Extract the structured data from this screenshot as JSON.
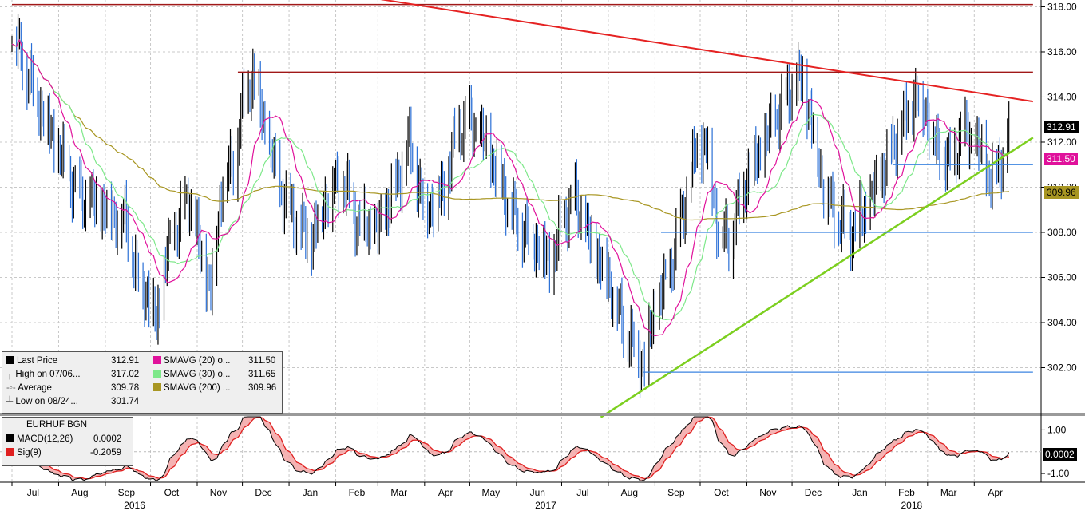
{
  "colors": {
    "price_up": "#000000",
    "price_down": "#2a6fd6",
    "sma20": "#e0119b",
    "sma30": "#7ee88a",
    "sma200": "#a89622",
    "trend_red": "#e52222",
    "hline_dark_red": "#a01818",
    "trend_green": "#7ccf1f",
    "support_blue": "#3b84e0",
    "macd_line": "#000000",
    "signal_line": "#e02020"
  },
  "main_panel": {
    "legend": {
      "last_price": {
        "label": "Last Price",
        "value": "312.91"
      },
      "high": {
        "label": "High on 07/06...",
        "value": "317.02"
      },
      "average": {
        "label": "Average",
        "value": "309.78"
      },
      "low": {
        "label": "Low on 08/24...",
        "value": "301.74"
      },
      "sma20": {
        "label": "SMAVG (20) o...",
        "value": "311.50"
      },
      "sma30": {
        "label": "SMAVG (30) o...",
        "value": "311.65"
      },
      "sma200": {
        "label": "SMAVG (200) ...",
        "value": "309.96"
      }
    },
    "badges": {
      "last": "312.91",
      "sma20": "311.50",
      "sma200": "309.96"
    }
  },
  "macd_panel": {
    "title": "EURHUF BGN",
    "macd": {
      "label": "MACD(12,26)",
      "value": "0.0002"
    },
    "sig": {
      "label": "Sig(9)",
      "value": "-0.2059"
    },
    "badge": "0.0002",
    "y_ticks": [
      "1.00",
      "-1.00"
    ]
  },
  "x_axis": {
    "months": [
      "Jul",
      "Aug",
      "Sep",
      "Oct",
      "Nov",
      "Dec",
      "Jan",
      "Feb",
      "Mar",
      "Apr",
      "May",
      "Jun",
      "Jul",
      "Aug",
      "Sep",
      "Oct",
      "Nov",
      "Dec",
      "Jan",
      "Feb",
      "Mar",
      "Apr"
    ],
    "years": [
      "2016",
      "2017",
      "2018"
    ]
  },
  "chart_data": {
    "type": "line",
    "title": "EURHUF BGN",
    "x_range": [
      "2016-07-01",
      "2018-04-30"
    ],
    "ylim": [
      300.0,
      318.3
    ],
    "y_ticks": [
      302,
      304,
      306,
      308,
      310,
      312,
      314,
      316,
      318
    ],
    "y_tick_labels": [
      "302.00",
      "304.00",
      "306.00",
      "308.00",
      "310.00",
      "312.00",
      "314.00",
      "316.00",
      "318.00"
    ],
    "price_keypoints": [
      {
        "date": "2016-07-01",
        "value": 316.8
      },
      {
        "date": "2016-07-15",
        "value": 314.5
      },
      {
        "date": "2016-08-01",
        "value": 311.5
      },
      {
        "date": "2016-08-15",
        "value": 309.5
      },
      {
        "date": "2016-09-01",
        "value": 309.0
      },
      {
        "date": "2016-09-15",
        "value": 308.5
      },
      {
        "date": "2016-09-22",
        "value": 306.0
      },
      {
        "date": "2016-09-28",
        "value": 305.5
      },
      {
        "date": "2016-10-05",
        "value": 304.0
      },
      {
        "date": "2016-10-12",
        "value": 307.0
      },
      {
        "date": "2016-10-20",
        "value": 308.5
      },
      {
        "date": "2016-10-27",
        "value": 309.5
      },
      {
        "date": "2016-11-03",
        "value": 307.0
      },
      {
        "date": "2016-11-10",
        "value": 305.5
      },
      {
        "date": "2016-11-18",
        "value": 310.5
      },
      {
        "date": "2016-11-25",
        "value": 311.0
      },
      {
        "date": "2016-12-02",
        "value": 314.0
      },
      {
        "date": "2016-12-08",
        "value": 315.0
      },
      {
        "date": "2016-12-15",
        "value": 313.0
      },
      {
        "date": "2016-12-25",
        "value": 310.0
      },
      {
        "date": "2017-01-05",
        "value": 308.5
      },
      {
        "date": "2017-01-15",
        "value": 307.5
      },
      {
        "date": "2017-01-25",
        "value": 309.5
      },
      {
        "date": "2017-02-05",
        "value": 310.5
      },
      {
        "date": "2017-02-15",
        "value": 308.5
      },
      {
        "date": "2017-03-01",
        "value": 308.0
      },
      {
        "date": "2017-03-15",
        "value": 310.5
      },
      {
        "date": "2017-03-22",
        "value": 312.0
      },
      {
        "date": "2017-04-01",
        "value": 309.0
      },
      {
        "date": "2017-04-15",
        "value": 310.0
      },
      {
        "date": "2017-04-22",
        "value": 312.5
      },
      {
        "date": "2017-05-01",
        "value": 313.0
      },
      {
        "date": "2017-05-10",
        "value": 312.0
      },
      {
        "date": "2017-05-20",
        "value": 310.5
      },
      {
        "date": "2017-06-01",
        "value": 308.5
      },
      {
        "date": "2017-06-15",
        "value": 307.5
      },
      {
        "date": "2017-06-25",
        "value": 306.5
      },
      {
        "date": "2017-07-01",
        "value": 308.5
      },
      {
        "date": "2017-07-10",
        "value": 309.5
      },
      {
        "date": "2017-07-20",
        "value": 307.5
      },
      {
        "date": "2017-08-01",
        "value": 306.0
      },
      {
        "date": "2017-08-10",
        "value": 304.0
      },
      {
        "date": "2017-08-24",
        "value": 302.2
      },
      {
        "date": "2017-09-01",
        "value": 304.5
      },
      {
        "date": "2017-09-10",
        "value": 306.0
      },
      {
        "date": "2017-09-20",
        "value": 309.0
      },
      {
        "date": "2017-09-28",
        "value": 311.5
      },
      {
        "date": "2017-10-05",
        "value": 312.0
      },
      {
        "date": "2017-10-12",
        "value": 308.5
      },
      {
        "date": "2017-10-20",
        "value": 307.5
      },
      {
        "date": "2017-11-01",
        "value": 310.5
      },
      {
        "date": "2017-11-10",
        "value": 311.5
      },
      {
        "date": "2017-11-20",
        "value": 313.0
      },
      {
        "date": "2017-12-01",
        "value": 314.5
      },
      {
        "date": "2017-12-08",
        "value": 314.8
      },
      {
        "date": "2017-12-15",
        "value": 312.5
      },
      {
        "date": "2017-12-22",
        "value": 310.0
      },
      {
        "date": "2018-01-01",
        "value": 308.5
      },
      {
        "date": "2018-01-10",
        "value": 308.0
      },
      {
        "date": "2018-01-20",
        "value": 309.0
      },
      {
        "date": "2018-02-01",
        "value": 311.0
      },
      {
        "date": "2018-02-10",
        "value": 312.5
      },
      {
        "date": "2018-02-20",
        "value": 314.0
      },
      {
        "date": "2018-02-28",
        "value": 313.5
      },
      {
        "date": "2018-03-05",
        "value": 312.0
      },
      {
        "date": "2018-03-15",
        "value": 311.0
      },
      {
        "date": "2018-03-25",
        "value": 312.5
      },
      {
        "date": "2018-04-05",
        "value": 311.5
      },
      {
        "date": "2018-04-12",
        "value": 310.3
      },
      {
        "date": "2018-04-18",
        "value": 311.0
      },
      {
        "date": "2018-04-24",
        "value": 312.91
      }
    ],
    "lines": [
      {
        "from": {
          "date": "2016-07-01",
          "value": 318.1
        },
        "to": {
          "date": "2018-05-10",
          "value": 318.1
        }
      },
      {
        "from": {
          "date": "2016-11-28",
          "value": 315.1
        },
        "to": {
          "date": "2018-05-10",
          "value": 315.1
        }
      },
      {
        "from": {
          "date": "2016-12-29",
          "value": 319.0
        },
        "to": {
          "date": "2018-05-10",
          "value": 313.8
        }
      },
      {
        "from": {
          "date": "2017-07-27",
          "value": 299.8
        },
        "to": {
          "date": "2018-05-10",
          "value": 312.2
        }
      },
      {
        "from": {
          "date": "2018-02-06",
          "value": 311.0
        },
        "to": {
          "date": "2018-05-10",
          "value": 311.0
        }
      },
      {
        "from": {
          "date": "2017-09-05",
          "value": 308.0
        },
        "to": {
          "date": "2018-05-10",
          "value": 308.0
        }
      },
      {
        "from": {
          "date": "2017-08-24",
          "value": 301.8
        },
        "to": {
          "date": "2018-05-10",
          "value": 301.8
        }
      }
    ],
    "macd": {
      "ylim": [
        -1.4,
        1.6
      ],
      "ticks": [
        1.0,
        -1.0
      ]
    }
  }
}
